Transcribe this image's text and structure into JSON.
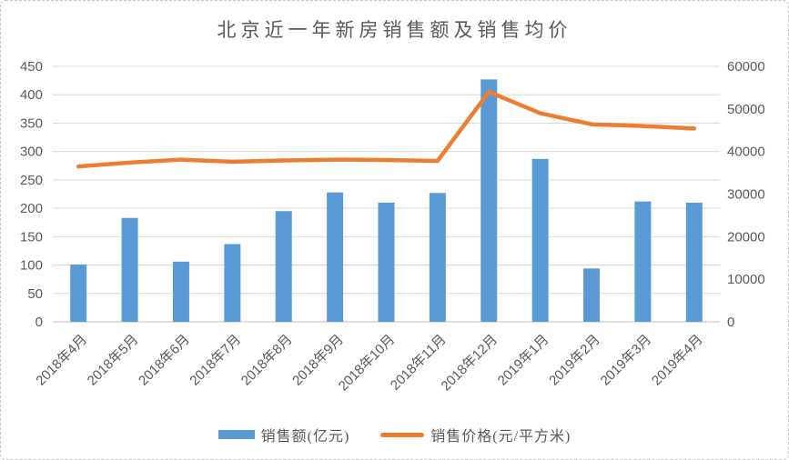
{
  "chart_data": {
    "type": "bar",
    "combo": "bar+line dual axis",
    "title": "北京近一年新房销售额及销售均价",
    "categories": [
      "2018年4月",
      "2018年5月",
      "2018年6月",
      "2018年7月",
      "2018年8月",
      "2018年9月",
      "2018年10月",
      "2018年11月",
      "2018年12月",
      "2019年1月",
      "2019年2月",
      "2019年3月",
      "2019年4月"
    ],
    "series": [
      {
        "name": "销售额(亿元)",
        "type": "bar",
        "axis": "left",
        "color": "#5B9BD5",
        "values": [
          101,
          183,
          106,
          137,
          195,
          228,
          210,
          227,
          427,
          287,
          94,
          212,
          210
        ]
      },
      {
        "name": "销售价格(元/平方米)",
        "type": "line",
        "axis": "right",
        "color": "#ED7D31",
        "values": [
          36500,
          37400,
          38100,
          37600,
          37900,
          38100,
          38000,
          37800,
          54000,
          49000,
          46400,
          46000,
          45400
        ]
      }
    ],
    "left_axis": {
      "min": 0,
      "max": 450,
      "step": 50,
      "ticks": [
        0,
        50,
        100,
        150,
        200,
        250,
        300,
        350,
        400,
        450
      ]
    },
    "right_axis": {
      "min": 0,
      "max": 60000,
      "step": 10000,
      "ticks": [
        0,
        10000,
        20000,
        30000,
        40000,
        50000,
        60000
      ]
    },
    "grid": true,
    "legend_position": "bottom",
    "x_tick_rotation_deg": -45
  },
  "colors": {
    "bar": "#5B9BD5",
    "line": "#ED7D31",
    "gridline": "#D9D9D9",
    "axis_line": "#BFBFBF",
    "text": "#595959"
  }
}
